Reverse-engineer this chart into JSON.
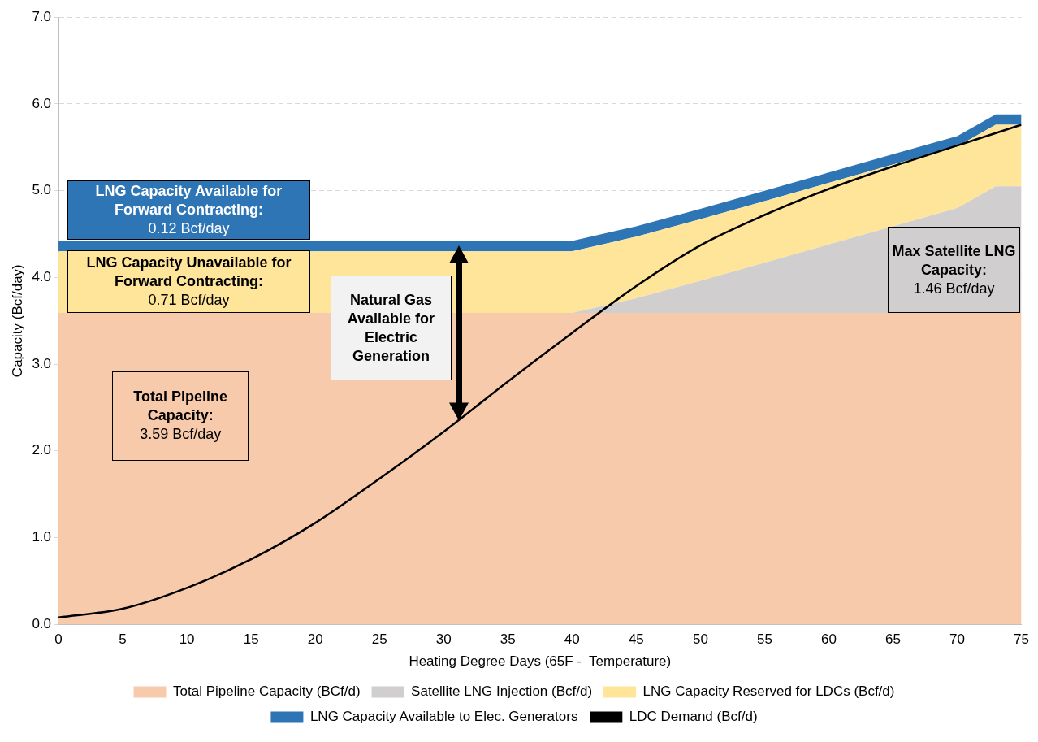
{
  "chart_data": {
    "type": "area",
    "stacked": true,
    "xlabel": "Heating Degree Days (65F -  Temperature)",
    "ylabel": "Capacity (Bcf/day)",
    "x": [
      0,
      40,
      45,
      50,
      55,
      60,
      65,
      70,
      73,
      75
    ],
    "series": [
      {
        "name": "Total Pipeline Capacity (BCf/d)",
        "color": "#f7caac",
        "values": [
          3.59,
          3.59,
          3.59,
          3.59,
          3.59,
          3.59,
          3.59,
          3.59,
          3.59,
          3.59
        ]
      },
      {
        "name": "Satellite LNG Injection (Bcf/d)",
        "color": "#d0cece",
        "values": [
          0,
          0,
          0.17,
          0.37,
          0.58,
          0.79,
          1.0,
          1.21,
          1.46,
          1.46
        ]
      },
      {
        "name": "LNG Capacity Reserved for LDCs (Bcf/d)",
        "color": "#ffe599",
        "values": [
          0.71,
          0.71,
          0.71,
          0.71,
          0.71,
          0.71,
          0.71,
          0.71,
          0.71,
          0.71
        ]
      },
      {
        "name": "LNG Capacity Available to Elec. Generators",
        "color": "#2e75b6",
        "values": [
          0.12,
          0.12,
          0.12,
          0.12,
          0.12,
          0.12,
          0.12,
          0.12,
          0.12,
          0.12
        ]
      },
      {
        "name": "LDC Demand (Bcf/d)",
        "type": "line",
        "color": "#000000",
        "x": [
          0,
          5,
          10,
          15,
          20,
          25,
          30,
          35,
          40,
          45,
          50,
          55,
          60,
          65,
          70,
          75
        ],
        "values": [
          0.08,
          0.18,
          0.42,
          0.75,
          1.17,
          1.68,
          2.22,
          2.8,
          3.36,
          3.9,
          4.37,
          4.72,
          5.02,
          5.28,
          5.52,
          5.76
        ]
      }
    ],
    "xlim": [
      0,
      75
    ],
    "xticks": [
      0,
      5,
      10,
      15,
      20,
      25,
      30,
      35,
      40,
      45,
      50,
      55,
      60,
      65,
      70,
      75
    ],
    "ylim": [
      0,
      7
    ],
    "yticks": [
      {
        "value": 0,
        "label": "0.0"
      },
      {
        "value": 1,
        "label": "1.0"
      },
      {
        "value": 2,
        "label": "2.0"
      },
      {
        "value": 3,
        "label": "3.0"
      },
      {
        "value": 4,
        "label": "4.0"
      },
      {
        "value": 5,
        "label": "5.0"
      },
      {
        "value": 6,
        "label": "6.0"
      },
      {
        "value": 7,
        "label": "7.0"
      }
    ],
    "grid": "y",
    "legend": "bottom",
    "marker": "none",
    "annotations": [
      "LNG Capacity Available for Forward Contracting:",
      "0.12 Bcf/day",
      "LNG Capacity Unavailable for Forward Contracting:",
      "0.71 Bcf/day",
      "Total Pipeline Capacity:",
      "3.59 Bcf/day",
      "Natural Gas Available for Electric Generation",
      "Max Satellite LNG Capacity:",
      "1.46 Bcf/day"
    ]
  }
}
